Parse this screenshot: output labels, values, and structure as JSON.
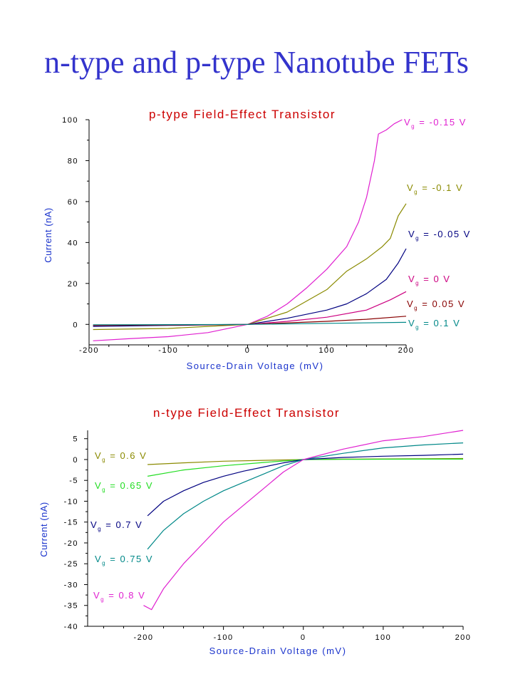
{
  "slide_title": "n-type and p-type Nanotube FETs",
  "chart_data": [
    {
      "type": "line",
      "title": "p-type Field-Effect Transistor",
      "xlabel": "Source-Drain Voltage (mV)",
      "ylabel": "Current (nA)",
      "xlim": [
        -200,
        200
      ],
      "ylim": [
        -10,
        100
      ],
      "xticks": [
        -200,
        -100,
        0,
        100,
        200
      ],
      "yticks": [
        0,
        20,
        40,
        60,
        80,
        100
      ],
      "grid": false,
      "axis_color": "#000000",
      "title_color": "#cc0000",
      "label_color": "#1a33cc",
      "series": [
        {
          "name": "Vg = -0.15 V",
          "label_main": "V",
          "label_sub": "g",
          "label_rest": " = -0.15 V",
          "color": "#e020d0",
          "x": [
            -195,
            -150,
            -100,
            -50,
            0,
            25,
            50,
            75,
            100,
            125,
            140,
            150,
            160,
            165,
            175,
            185,
            195
          ],
          "y": [
            -8,
            -7,
            -6,
            -4,
            0,
            4,
            10,
            18,
            27,
            38,
            50,
            62,
            80,
            93,
            95,
            98,
            100
          ]
        },
        {
          "name": "Vg = -0.1 V",
          "label_main": "V",
          "label_sub": "g",
          "label_rest": " = -0.1 V",
          "color": "#8a8a00",
          "x": [
            -195,
            -100,
            -50,
            0,
            50,
            100,
            125,
            150,
            170,
            180,
            190,
            200
          ],
          "y": [
            -2.5,
            -2,
            -1,
            0,
            6,
            17,
            26,
            32,
            38,
            42,
            53,
            59
          ]
        },
        {
          "name": "Vg = -0.05 V",
          "label_main": "V",
          "label_sub": "g",
          "label_rest": " = -0.05 V",
          "color": "#000080",
          "x": [
            -195,
            -100,
            0,
            50,
            100,
            125,
            150,
            175,
            190,
            200
          ],
          "y": [
            -1,
            -0.5,
            0,
            3,
            7,
            10,
            15,
            22,
            30,
            37
          ]
        },
        {
          "name": "Vg = 0 V",
          "label_main": "V",
          "label_sub": "g",
          "label_rest": " = 0 V",
          "color": "#cc0080",
          "x": [
            -195,
            -100,
            0,
            50,
            100,
            150,
            180,
            200
          ],
          "y": [
            -0.5,
            -0.3,
            0,
            1.5,
            3.5,
            7,
            12,
            16
          ]
        },
        {
          "name": "Vg = 0.05 V",
          "label_main": "V",
          "label_sub": "g",
          "label_rest": " = 0.05 V",
          "color": "#880000",
          "x": [
            -195,
            -100,
            0,
            100,
            150,
            200
          ],
          "y": [
            -0.5,
            -0.3,
            0,
            1.5,
            2.5,
            4
          ]
        },
        {
          "name": "Vg = 0.1 V",
          "label_main": "V",
          "label_sub": "g",
          "label_rest": " = 0.1 V",
          "color": "#008888",
          "x": [
            -195,
            -100,
            0,
            100,
            200
          ],
          "y": [
            -0.2,
            -0.1,
            0,
            0.5,
            1
          ]
        }
      ]
    },
    {
      "type": "line",
      "title": "n-type Field-Effect Transistor",
      "xlabel": "Source-Drain Voltage (mV)",
      "ylabel": "Current (nA)",
      "xlim": [
        -270,
        200
      ],
      "ylim": [
        -40,
        7
      ],
      "xticks": [
        -200,
        -100,
        0,
        100,
        200
      ],
      "xtick_labels": [
        "-200",
        "-100",
        "0",
        "100",
        "200"
      ],
      "yticks": [
        5,
        0,
        -5,
        -10,
        -15,
        -20,
        -25,
        -30,
        -35,
        -40
      ],
      "grid": false,
      "axis_color": "#000000",
      "title_color": "#cc0000",
      "label_color": "#1a33cc",
      "series": [
        {
          "name": "Vg = 0.6 V",
          "label_main": "V",
          "label_sub": "g",
          "label_rest": " = 0.6 V",
          "color": "#8a8a00",
          "x": [
            -195,
            -150,
            -100,
            -50,
            0,
            50,
            100,
            150,
            200
          ],
          "y": [
            -1.2,
            -0.8,
            -0.4,
            -0.2,
            0,
            0.1,
            0.15,
            0.2,
            0.25
          ]
        },
        {
          "name": "Vg = 0.65 V",
          "label_main": "V",
          "label_sub": "g",
          "label_rest": " = 0.65 V",
          "color": "#22dd22",
          "x": [
            -195,
            -150,
            -100,
            -50,
            0,
            50,
            100,
            150,
            200
          ],
          "y": [
            -4,
            -2.5,
            -1.5,
            -0.7,
            0,
            0.05,
            0.08,
            0.1,
            0.1
          ]
        },
        {
          "name": "Vg = 0.7 V",
          "label_main": "V",
          "label_sub": "g",
          "label_rest": " = 0.7 V",
          "color": "#000080",
          "x": [
            -195,
            -175,
            -150,
            -125,
            -100,
            -75,
            -50,
            -25,
            0,
            50,
            100,
            150,
            200
          ],
          "y": [
            -13.5,
            -10,
            -7.5,
            -5.5,
            -4,
            -2.8,
            -1.8,
            -0.8,
            0,
            0.5,
            0.8,
            1,
            1.3
          ]
        },
        {
          "name": "Vg = 0.75 V",
          "label_main": "V",
          "label_sub": "g",
          "label_rest": " = 0.75 V",
          "color": "#008888",
          "x": [
            -195,
            -175,
            -150,
            -125,
            -100,
            -75,
            -50,
            -25,
            0,
            50,
            100,
            150,
            200
          ],
          "y": [
            -21.5,
            -17,
            -13,
            -10,
            -7.5,
            -5.5,
            -3.5,
            -1.5,
            0,
            1.5,
            2.8,
            3.5,
            4
          ]
        },
        {
          "name": "Vg = 0.8 V",
          "label_main": "V",
          "label_sub": "g",
          "label_rest": " = 0.8 V",
          "color": "#e020d0",
          "x": [
            -200,
            -190,
            -175,
            -150,
            -125,
            -100,
            -75,
            -50,
            -25,
            0,
            50,
            100,
            150,
            200
          ],
          "y": [
            -35,
            -36,
            -31,
            -25,
            -20,
            -15,
            -11,
            -7,
            -3,
            0,
            2.5,
            4.5,
            5.5,
            7
          ]
        }
      ]
    }
  ]
}
